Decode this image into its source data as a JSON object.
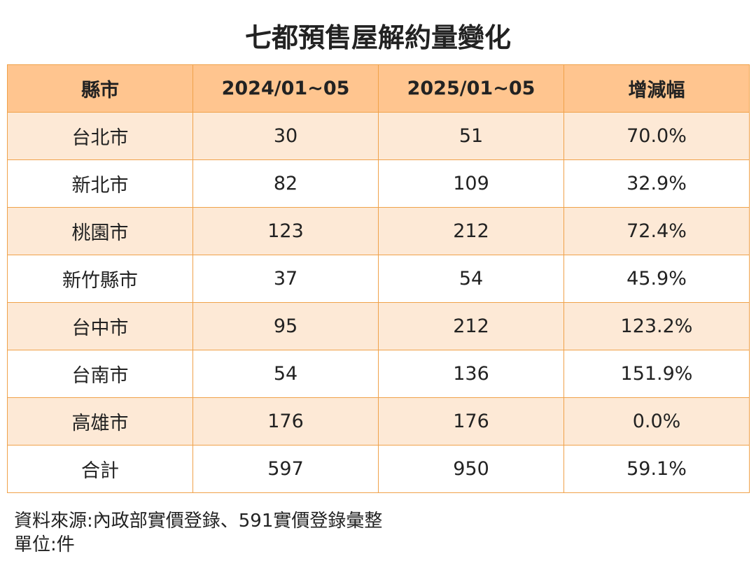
{
  "title": "七都預售屋解約量變化",
  "colors": {
    "header_bg": "#ffc58f",
    "shaded_row_bg": "#fde9d6",
    "border": "#f0a24a"
  },
  "table": {
    "headers": [
      "縣市",
      "2024/01~05",
      "2025/01~05",
      "增減幅"
    ],
    "rows": [
      [
        "台北市",
        "30",
        "51",
        "70.0%"
      ],
      [
        "新北市",
        "82",
        "109",
        "32.9%"
      ],
      [
        "桃園市",
        "123",
        "212",
        "72.4%"
      ],
      [
        "新竹縣市",
        "37",
        "54",
        "45.9%"
      ],
      [
        "台中市",
        "95",
        "212",
        "123.2%"
      ],
      [
        "台南市",
        "54",
        "136",
        "151.9%"
      ],
      [
        "高雄市",
        "176",
        "176",
        "0.0%"
      ],
      [
        "合計",
        "597",
        "950",
        "59.1%"
      ]
    ]
  },
  "footer": {
    "source": "資料來源:內政部實價登錄、591實價登錄彙整",
    "unit": "單位:件"
  }
}
